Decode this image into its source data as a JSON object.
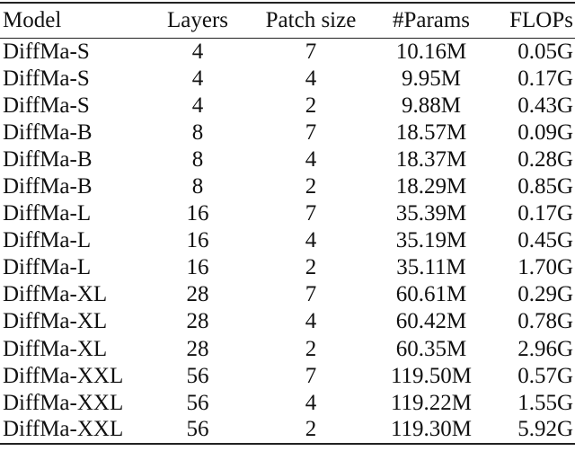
{
  "table": {
    "headers": [
      "Model",
      "Layers",
      "Patch size",
      "#Params",
      "FLOPs"
    ],
    "rows": [
      [
        "DiffMa-S",
        "4",
        "7",
        "10.16M",
        "0.05G"
      ],
      [
        "DiffMa-S",
        "4",
        "4",
        "9.95M",
        "0.17G"
      ],
      [
        "DiffMa-S",
        "4",
        "2",
        "9.88M",
        "0.43G"
      ],
      [
        "DiffMa-B",
        "8",
        "7",
        "18.57M",
        "0.09G"
      ],
      [
        "DiffMa-B",
        "8",
        "4",
        "18.37M",
        "0.28G"
      ],
      [
        "DiffMa-B",
        "8",
        "2",
        "18.29M",
        "0.85G"
      ],
      [
        "DiffMa-L",
        "16",
        "7",
        "35.39M",
        "0.17G"
      ],
      [
        "DiffMa-L",
        "16",
        "4",
        "35.19M",
        "0.45G"
      ],
      [
        "DiffMa-L",
        "16",
        "2",
        "35.11M",
        "1.70G"
      ],
      [
        "DiffMa-XL",
        "28",
        "7",
        "60.61M",
        "0.29G"
      ],
      [
        "DiffMa-XL",
        "28",
        "4",
        "60.42M",
        "0.78G"
      ],
      [
        "DiffMa-XL",
        "28",
        "2",
        "60.35M",
        "2.96G"
      ],
      [
        "DiffMa-XXL",
        "56",
        "7",
        "119.50M",
        "0.57G"
      ],
      [
        "DiffMa-XXL",
        "56",
        "4",
        "119.22M",
        "1.55G"
      ],
      [
        "DiffMa-XXL",
        "56",
        "2",
        "119.30M",
        "5.92G"
      ]
    ]
  }
}
